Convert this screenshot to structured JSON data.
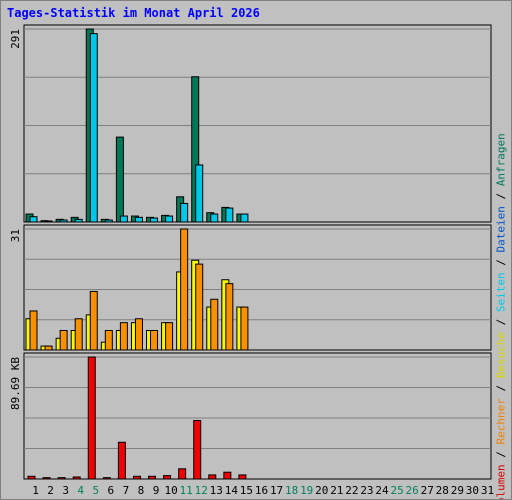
{
  "title": "Tages-Statistik im Monat April 2026",
  "chart_data": [
    {
      "type": "bar",
      "name": "hits-files",
      "ymax_label": "291",
      "ymax": 291,
      "x": [
        1,
        2,
        3,
        4,
        5,
        6,
        7,
        8,
        9,
        10,
        11,
        12,
        13,
        14,
        15,
        16,
        17,
        18,
        19,
        20,
        21,
        22,
        23,
        24,
        25,
        26,
        27,
        28,
        29,
        30,
        31
      ],
      "series": [
        {
          "name": "Anfragen",
          "color": "#007858",
          "values": [
            12,
            2,
            4,
            7,
            291,
            4,
            128,
            9,
            7,
            10,
            38,
            219,
            14,
            22,
            12,
            0,
            0,
            0,
            0,
            0,
            0,
            0,
            0,
            0,
            0,
            0,
            0,
            0,
            0,
            0,
            0
          ]
        },
        {
          "name": "Dateien",
          "color": "#00c8e8",
          "values": [
            8,
            1,
            3,
            4,
            284,
            3,
            9,
            7,
            6,
            9,
            28,
            86,
            12,
            21,
            12,
            0,
            0,
            0,
            0,
            0,
            0,
            0,
            0,
            0,
            0,
            0,
            0,
            0,
            0,
            0,
            0
          ]
        }
      ]
    },
    {
      "type": "bar",
      "name": "pages-visits",
      "ymax_label": "31",
      "ymax": 31,
      "x": [
        1,
        2,
        3,
        4,
        5,
        6,
        7,
        8,
        9,
        10,
        11,
        12,
        13,
        14,
        15,
        16,
        17,
        18,
        19,
        20,
        21,
        22,
        23,
        24,
        25,
        26,
        27,
        28,
        29,
        30,
        31
      ],
      "series": [
        {
          "name": "Seiten",
          "color": "#f8f800",
          "values": [
            8,
            1,
            3,
            5,
            9,
            2,
            5,
            7,
            5,
            7,
            20,
            23,
            11,
            18,
            11,
            0,
            0,
            0,
            0,
            0,
            0,
            0,
            0,
            0,
            0,
            0,
            0,
            0,
            0,
            0,
            0
          ]
        },
        {
          "name": "Besuche",
          "color": "#f89000",
          "values": [
            10,
            1,
            5,
            8,
            15,
            5,
            7,
            8,
            5,
            7,
            31,
            22,
            13,
            17,
            11,
            0,
            0,
            0,
            0,
            0,
            0,
            0,
            0,
            0,
            0,
            0,
            0,
            0,
            0,
            0,
            0
          ]
        }
      ]
    },
    {
      "type": "bar",
      "name": "volume",
      "ymax_label": "89.69 KB",
      "ymax": 89.69,
      "x": [
        1,
        2,
        3,
        4,
        5,
        6,
        7,
        8,
        9,
        10,
        11,
        12,
        13,
        14,
        15,
        16,
        17,
        18,
        19,
        20,
        21,
        22,
        23,
        24,
        25,
        26,
        27,
        28,
        29,
        30,
        31
      ],
      "series": [
        {
          "name": "Volumen",
          "color": "#f00000",
          "values": [
            2,
            1,
            1,
            1.5,
            89.69,
            1,
            27,
            2,
            2,
            2.5,
            7.5,
            43,
            3,
            5,
            3,
            0,
            0,
            0,
            0,
            0,
            0,
            0,
            0,
            0,
            0,
            0,
            0,
            0,
            0,
            0,
            0
          ]
        }
      ]
    }
  ],
  "x_ticks": [
    {
      "label": "1",
      "color": "#000000"
    },
    {
      "label": "2",
      "color": "#000000"
    },
    {
      "label": "3",
      "color": "#000000"
    },
    {
      "label": "4",
      "color": "#00805c"
    },
    {
      "label": "5",
      "color": "#00805c"
    },
    {
      "label": "6",
      "color": "#000000"
    },
    {
      "label": "7",
      "color": "#000000"
    },
    {
      "label": "8",
      "color": "#000000"
    },
    {
      "label": "9",
      "color": "#000000"
    },
    {
      "label": "10",
      "color": "#000000"
    },
    {
      "label": "11",
      "color": "#00805c"
    },
    {
      "label": "12",
      "color": "#00805c"
    },
    {
      "label": "13",
      "color": "#000000"
    },
    {
      "label": "14",
      "color": "#000000"
    },
    {
      "label": "15",
      "color": "#000000"
    },
    {
      "label": "16",
      "color": "#000000"
    },
    {
      "label": "17",
      "color": "#000000"
    },
    {
      "label": "18",
      "color": "#00805c"
    },
    {
      "label": "19",
      "color": "#00805c"
    },
    {
      "label": "20",
      "color": "#000000"
    },
    {
      "label": "21",
      "color": "#000000"
    },
    {
      "label": "22",
      "color": "#000000"
    },
    {
      "label": "23",
      "color": "#000000"
    },
    {
      "label": "24",
      "color": "#000000"
    },
    {
      "label": "25",
      "color": "#00805c"
    },
    {
      "label": "26",
      "color": "#00805c"
    },
    {
      "label": "27",
      "color": "#000000"
    },
    {
      "label": "28",
      "color": "#000000"
    },
    {
      "label": "29",
      "color": "#000000"
    },
    {
      "label": "30",
      "color": "#000000"
    },
    {
      "label": "31",
      "color": "#000000"
    }
  ],
  "legend": {
    "separator": " / ",
    "items": [
      {
        "label": "Volumen",
        "color": "#d80000"
      },
      {
        "label": "Rechner",
        "color": "#f08000"
      },
      {
        "label": "Besuche",
        "color": "#d8d800"
      },
      {
        "label": "Seiten",
        "color": "#00c8e8"
      },
      {
        "label": "Dateien",
        "color": "#0050c8"
      },
      {
        "label": "Anfragen",
        "color": "#007858"
      }
    ]
  }
}
